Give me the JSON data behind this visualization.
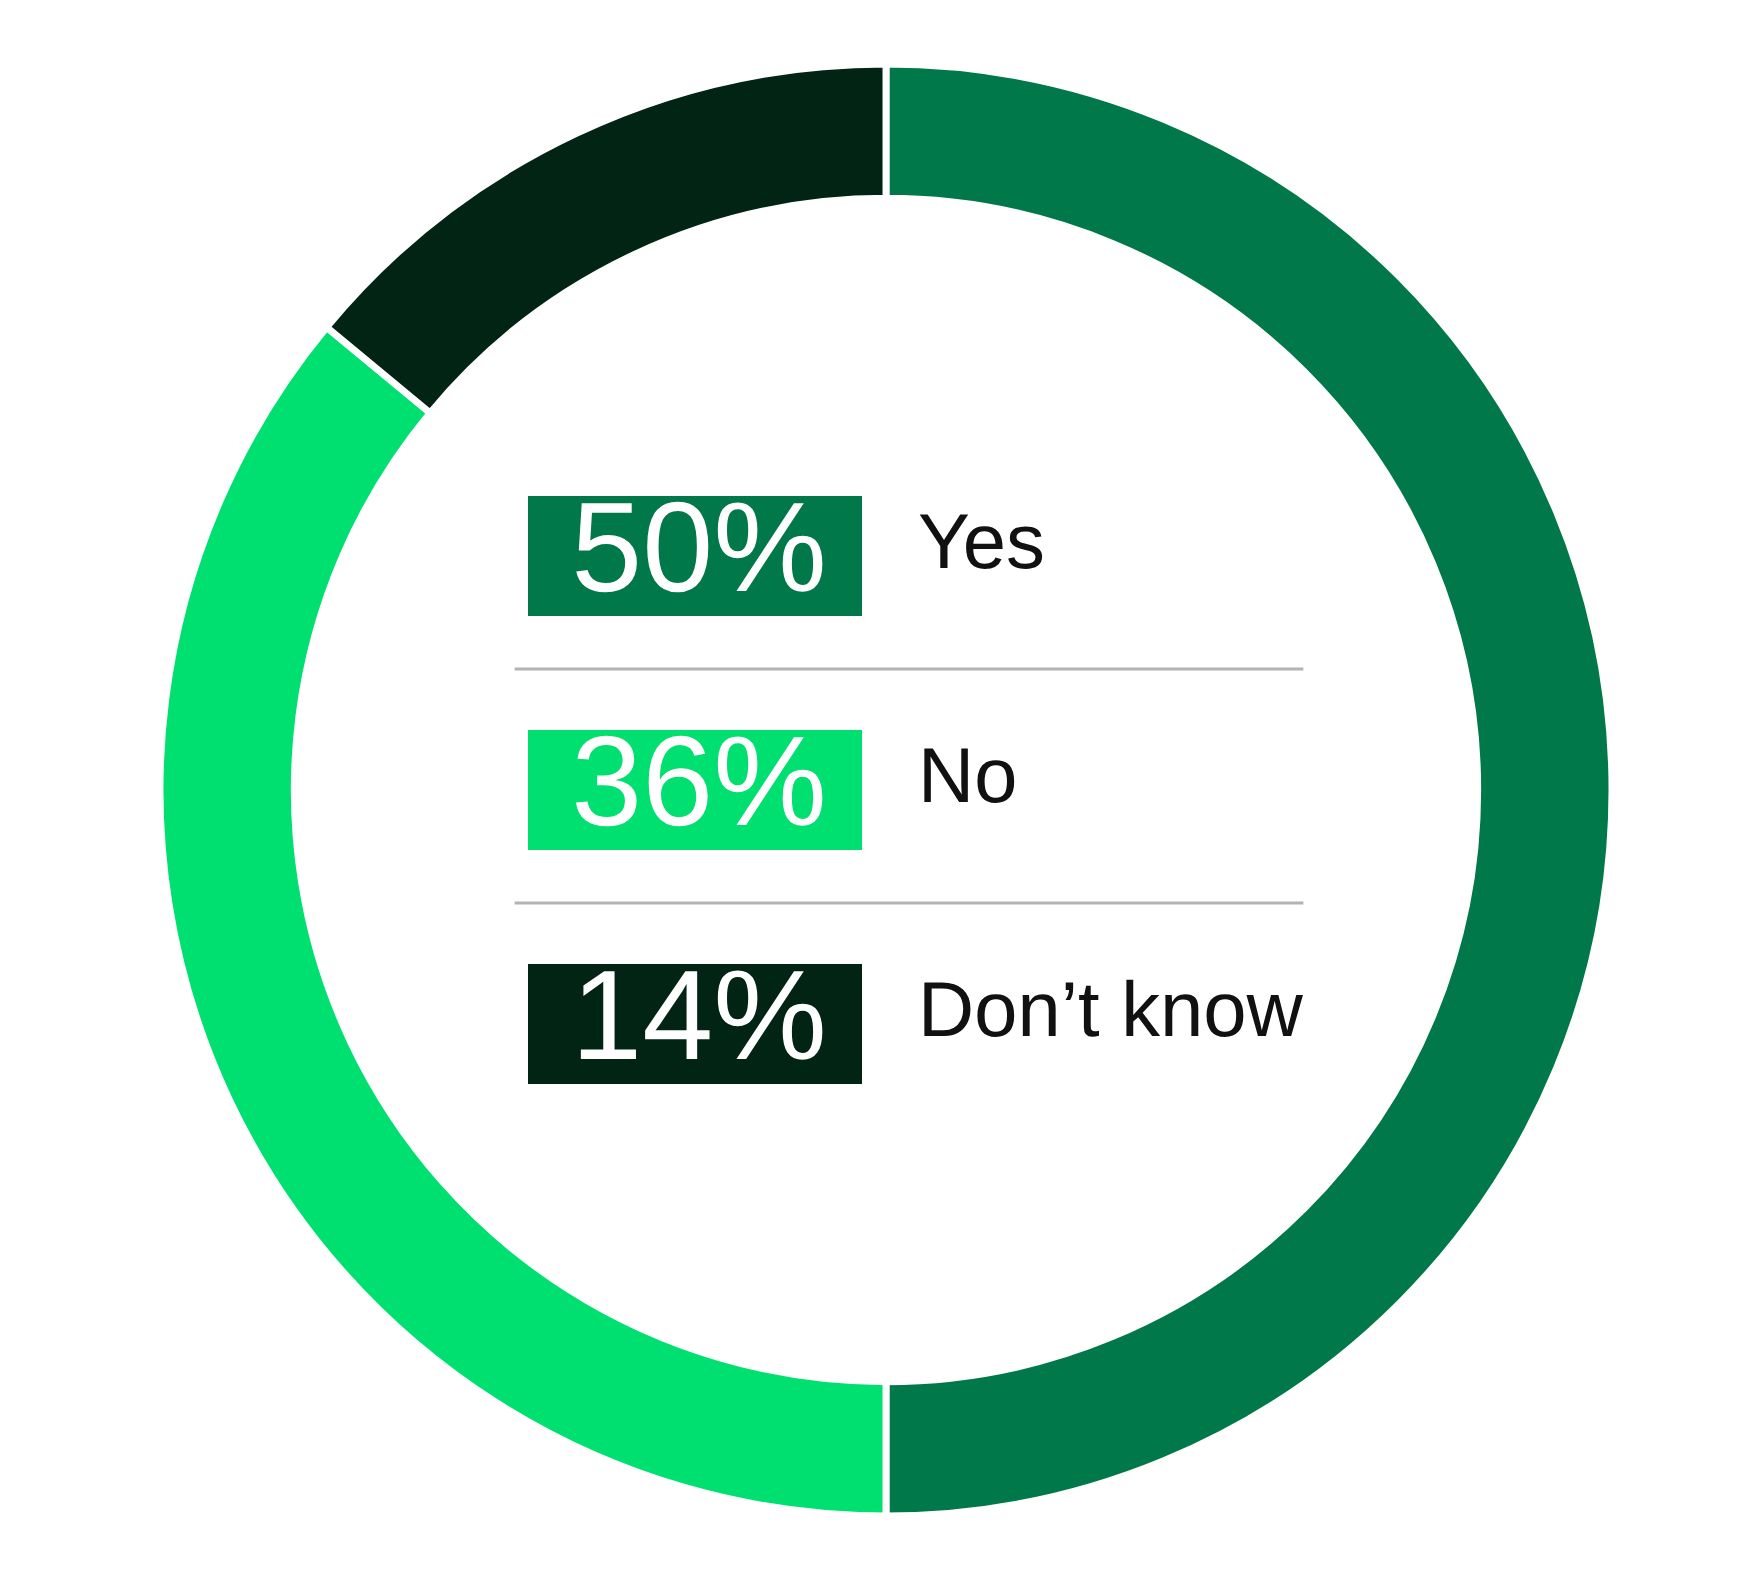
{
  "chart_data": {
    "type": "donut",
    "categories": [
      "Yes",
      "No",
      "Don’t know"
    ],
    "values": [
      50,
      36,
      14
    ],
    "colors": [
      "#00784a",
      "#00e070",
      "#022415"
    ],
    "value_labels": [
      "50%",
      "36%",
      "14%"
    ],
    "legend": "center"
  }
}
